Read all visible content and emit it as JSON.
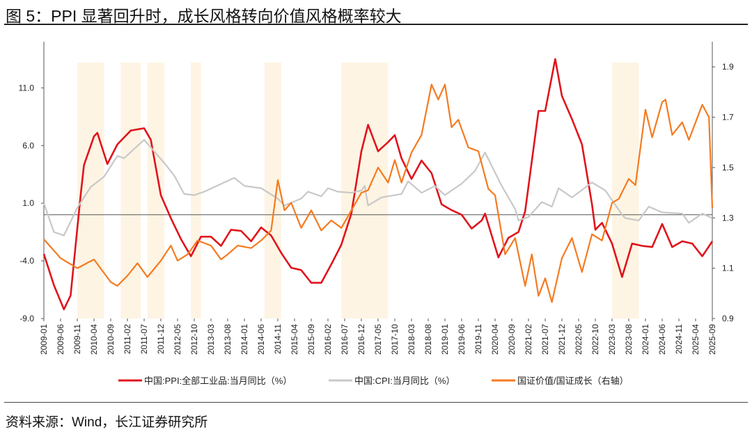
{
  "title": "图 5：PPI 显著回升时，成长风格转向价值风格概率较大",
  "source": "资料来源：Wind，长江证券研究所",
  "chart_data": {
    "type": "line",
    "title": "图 5：PPI 显著回升时，成长风格转向价值风格概率较大",
    "x_range": [
      "2009-01",
      "2025-09"
    ],
    "x_ticks": [
      "2009-01",
      "2009-06",
      "2009-11",
      "2010-04",
      "2010-09",
      "2011-02",
      "2011-07",
      "2011-12",
      "2012-05",
      "2012-10",
      "2013-03",
      "2013-08",
      "2014-01",
      "2014-06",
      "2014-11",
      "2015-04",
      "2015-09",
      "2016-02",
      "2016-07",
      "2016-12",
      "2017-05",
      "2017-10",
      "2018-03",
      "2018-08",
      "2019-01",
      "2019-06",
      "2019-11",
      "2020-04",
      "2020-09",
      "2021-02",
      "2021-07",
      "2021-12",
      "2022-05",
      "2022-10",
      "2023-03",
      "2023-08",
      "2024-01",
      "2024-06",
      "2024-11",
      "2025-04",
      "2025-09"
    ],
    "y_left": {
      "range": [
        -9,
        15
      ],
      "ticks": [
        "-9.0",
        "-4.0",
        "1.0",
        "6.0",
        "11.0"
      ]
    },
    "y_right": {
      "range": [
        0.9,
        2.0
      ],
      "ticks": [
        "0.9",
        "1.1",
        "1.3",
        "1.5",
        "1.7",
        "1.9"
      ]
    },
    "zero_line": 0,
    "legend_position": "bottom",
    "shaded_periods": [
      [
        "2009-11",
        "2010-07"
      ],
      [
        "2010-12",
        "2011-06"
      ],
      [
        "2011-08",
        "2012-01"
      ],
      [
        "2012-09",
        "2012-12"
      ],
      [
        "2014-07",
        "2014-12"
      ],
      [
        "2016-06",
        "2017-08"
      ],
      [
        "2023-03",
        "2023-11"
      ]
    ],
    "shade_color": "#fdf4e3",
    "series": [
      {
        "name": "中国:PPI:全部工业品:当月同比（%）",
        "axis": "left",
        "color": "#e0141c",
        "points": [
          [
            "2009-01",
            -3.4
          ],
          [
            "2009-04",
            -6.1
          ],
          [
            "2009-07",
            -8.2
          ],
          [
            "2009-09",
            -7.0
          ],
          [
            "2009-12",
            1.7
          ],
          [
            "2010-01",
            4.3
          ],
          [
            "2010-04",
            6.8
          ],
          [
            "2010-05",
            7.1
          ],
          [
            "2010-08",
            4.4
          ],
          [
            "2010-11",
            6.1
          ],
          [
            "2011-03",
            7.3
          ],
          [
            "2011-07",
            7.5
          ],
          [
            "2011-09",
            6.5
          ],
          [
            "2011-12",
            1.7
          ],
          [
            "2012-03",
            -0.3
          ],
          [
            "2012-06",
            -2.1
          ],
          [
            "2012-09",
            -3.6
          ],
          [
            "2012-12",
            -1.9
          ],
          [
            "2013-03",
            -1.9
          ],
          [
            "2013-06",
            -2.7
          ],
          [
            "2013-09",
            -1.3
          ],
          [
            "2013-12",
            -1.4
          ],
          [
            "2014-03",
            -2.3
          ],
          [
            "2014-06",
            -1.1
          ],
          [
            "2014-09",
            -1.8
          ],
          [
            "2014-12",
            -3.3
          ],
          [
            "2015-03",
            -4.6
          ],
          [
            "2015-06",
            -4.8
          ],
          [
            "2015-09",
            -5.9
          ],
          [
            "2015-12",
            -5.9
          ],
          [
            "2016-03",
            -4.3
          ],
          [
            "2016-06",
            -2.6
          ],
          [
            "2016-09",
            0.1
          ],
          [
            "2016-12",
            5.5
          ],
          [
            "2017-02",
            7.8
          ],
          [
            "2017-05",
            5.5
          ],
          [
            "2017-08",
            6.3
          ],
          [
            "2017-10",
            6.9
          ],
          [
            "2017-12",
            4.9
          ],
          [
            "2018-03",
            3.1
          ],
          [
            "2018-06",
            4.7
          ],
          [
            "2018-09",
            3.6
          ],
          [
            "2018-12",
            0.9
          ],
          [
            "2019-03",
            0.4
          ],
          [
            "2019-06",
            0.0
          ],
          [
            "2019-09",
            -1.2
          ],
          [
            "2019-12",
            -0.5
          ],
          [
            "2020-01",
            0.1
          ],
          [
            "2020-05",
            -3.7
          ],
          [
            "2020-08",
            -2.0
          ],
          [
            "2020-11",
            -1.5
          ],
          [
            "2021-01",
            0.3
          ],
          [
            "2021-05",
            9.0
          ],
          [
            "2021-07",
            9.0
          ],
          [
            "2021-10",
            13.5
          ],
          [
            "2021-12",
            10.3
          ],
          [
            "2022-03",
            8.3
          ],
          [
            "2022-06",
            6.1
          ],
          [
            "2022-09",
            0.9
          ],
          [
            "2022-10",
            -1.3
          ],
          [
            "2022-12",
            -0.7
          ],
          [
            "2023-03",
            -2.5
          ],
          [
            "2023-06",
            -5.4
          ],
          [
            "2023-09",
            -2.5
          ],
          [
            "2023-12",
            -2.7
          ],
          [
            "2024-03",
            -2.8
          ],
          [
            "2024-06",
            -0.8
          ],
          [
            "2024-09",
            -2.8
          ],
          [
            "2024-12",
            -2.3
          ],
          [
            "2025-03",
            -2.5
          ],
          [
            "2025-06",
            -3.6
          ],
          [
            "2025-09",
            -2.3
          ]
        ]
      },
      {
        "name": "中国:CPI:当月同比（%）",
        "axis": "left",
        "color": "#c8c8c8",
        "points": [
          [
            "2009-01",
            1.0
          ],
          [
            "2009-04",
            -1.5
          ],
          [
            "2009-07",
            -1.8
          ],
          [
            "2009-11",
            0.6
          ],
          [
            "2010-03",
            2.4
          ],
          [
            "2010-07",
            3.3
          ],
          [
            "2010-11",
            5.1
          ],
          [
            "2011-01",
            4.9
          ],
          [
            "2011-07",
            6.5
          ],
          [
            "2011-10",
            5.5
          ],
          [
            "2012-01",
            4.5
          ],
          [
            "2012-04",
            3.4
          ],
          [
            "2012-07",
            1.8
          ],
          [
            "2012-10",
            1.7
          ],
          [
            "2013-01",
            2.0
          ],
          [
            "2013-04",
            2.4
          ],
          [
            "2013-10",
            3.2
          ],
          [
            "2014-01",
            2.5
          ],
          [
            "2014-06",
            2.3
          ],
          [
            "2014-11",
            1.4
          ],
          [
            "2015-01",
            0.8
          ],
          [
            "2015-06",
            1.4
          ],
          [
            "2015-08",
            2.0
          ],
          [
            "2015-12",
            1.6
          ],
          [
            "2016-02",
            2.3
          ],
          [
            "2016-05",
            2.0
          ],
          [
            "2016-09",
            1.9
          ],
          [
            "2016-12",
            2.1
          ],
          [
            "2017-01",
            2.5
          ],
          [
            "2017-02",
            0.8
          ],
          [
            "2017-06",
            1.5
          ],
          [
            "2017-12",
            1.8
          ],
          [
            "2018-02",
            2.9
          ],
          [
            "2018-06",
            1.9
          ],
          [
            "2018-10",
            2.5
          ],
          [
            "2019-01",
            1.7
          ],
          [
            "2019-06",
            2.7
          ],
          [
            "2019-10",
            3.8
          ],
          [
            "2020-01",
            5.4
          ],
          [
            "2020-06",
            2.5
          ],
          [
            "2020-10",
            0.5
          ],
          [
            "2020-11",
            -0.5
          ],
          [
            "2021-02",
            -0.2
          ],
          [
            "2021-06",
            1.1
          ],
          [
            "2021-09",
            0.7
          ],
          [
            "2021-11",
            2.3
          ],
          [
            "2022-03",
            1.5
          ],
          [
            "2022-09",
            2.8
          ],
          [
            "2023-01",
            2.1
          ],
          [
            "2023-06",
            0.0
          ],
          [
            "2023-07",
            -0.3
          ],
          [
            "2023-11",
            -0.5
          ],
          [
            "2024-02",
            0.7
          ],
          [
            "2024-06",
            0.2
          ],
          [
            "2024-12",
            0.1
          ],
          [
            "2025-02",
            -0.7
          ],
          [
            "2025-06",
            0.1
          ],
          [
            "2025-09",
            -0.3
          ]
        ]
      },
      {
        "name": "国证价值/国证成长（右轴）",
        "axis": "right",
        "color": "#f57a1f",
        "points": [
          [
            "2009-01",
            1.215
          ],
          [
            "2009-06",
            1.14
          ],
          [
            "2009-11",
            1.1
          ],
          [
            "2010-04",
            1.135
          ],
          [
            "2010-09",
            1.045
          ],
          [
            "2010-11",
            1.03
          ],
          [
            "2011-02",
            1.07
          ],
          [
            "2011-05",
            1.12
          ],
          [
            "2011-08",
            1.065
          ],
          [
            "2011-12",
            1.13
          ],
          [
            "2012-03",
            1.19
          ],
          [
            "2012-05",
            1.13
          ],
          [
            "2012-08",
            1.155
          ],
          [
            "2012-11",
            1.21
          ],
          [
            "2013-03",
            1.19
          ],
          [
            "2013-06",
            1.135
          ],
          [
            "2013-08",
            1.155
          ],
          [
            "2013-11",
            1.19
          ],
          [
            "2014-03",
            1.18
          ],
          [
            "2014-06",
            1.21
          ],
          [
            "2014-09",
            1.25
          ],
          [
            "2014-11",
            1.45
          ],
          [
            "2015-01",
            1.33
          ],
          [
            "2015-03",
            1.36
          ],
          [
            "2015-06",
            1.26
          ],
          [
            "2015-09",
            1.33
          ],
          [
            "2015-12",
            1.25
          ],
          [
            "2016-03",
            1.29
          ],
          [
            "2016-06",
            1.26
          ],
          [
            "2016-09",
            1.33
          ],
          [
            "2016-12",
            1.4
          ],
          [
            "2017-02",
            1.41
          ],
          [
            "2017-05",
            1.5
          ],
          [
            "2017-08",
            1.44
          ],
          [
            "2017-10",
            1.53
          ],
          [
            "2017-12",
            1.44
          ],
          [
            "2018-03",
            1.56
          ],
          [
            "2018-06",
            1.63
          ],
          [
            "2018-09",
            1.83
          ],
          [
            "2018-11",
            1.77
          ],
          [
            "2019-01",
            1.83
          ],
          [
            "2019-03",
            1.66
          ],
          [
            "2019-05",
            1.69
          ],
          [
            "2019-08",
            1.58
          ],
          [
            "2019-11",
            1.565
          ],
          [
            "2020-02",
            1.415
          ],
          [
            "2020-04",
            1.39
          ],
          [
            "2020-07",
            1.155
          ],
          [
            "2020-10",
            1.22
          ],
          [
            "2021-01",
            1.03
          ],
          [
            "2021-03",
            1.155
          ],
          [
            "2021-05",
            0.99
          ],
          [
            "2021-07",
            1.06
          ],
          [
            "2021-09",
            0.965
          ],
          [
            "2021-12",
            1.14
          ],
          [
            "2022-03",
            1.22
          ],
          [
            "2022-06",
            1.085
          ],
          [
            "2022-09",
            1.235
          ],
          [
            "2022-12",
            1.21
          ],
          [
            "2023-03",
            1.36
          ],
          [
            "2023-05",
            1.375
          ],
          [
            "2023-08",
            1.455
          ],
          [
            "2023-10",
            1.43
          ],
          [
            "2024-01",
            1.73
          ],
          [
            "2024-03",
            1.62
          ],
          [
            "2024-06",
            1.76
          ],
          [
            "2024-07",
            1.77
          ],
          [
            "2024-09",
            1.63
          ],
          [
            "2024-12",
            1.68
          ],
          [
            "2025-02",
            1.61
          ],
          [
            "2025-06",
            1.75
          ],
          [
            "2025-08",
            1.7
          ],
          [
            "2025-09",
            1.34
          ]
        ]
      }
    ]
  }
}
